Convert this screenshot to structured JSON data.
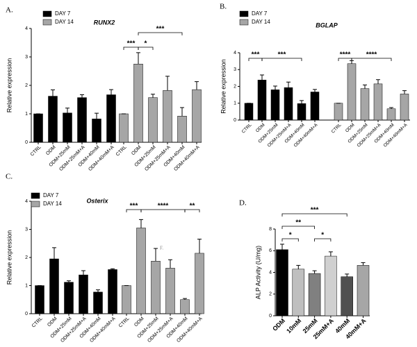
{
  "chart_data": [
    {
      "type": "bar",
      "panel": "A.",
      "title": "RUNX2",
      "y_label": "Relative expression",
      "categories": [
        "CTRL",
        "ODM",
        "ODM+25mM",
        "ODM+25mM+A",
        "ODM+40mM",
        "ODM+40mM+A"
      ],
      "series": [
        {
          "name": "DAY 7",
          "color": "#000000",
          "values": [
            1,
            1.62,
            1.03,
            1.57,
            0.82,
            1.67
          ],
          "errors": [
            0,
            0.22,
            0.17,
            0.1,
            0.2,
            0.18
          ]
        },
        {
          "name": "DAY 14",
          "color": "#a6a6a6",
          "values": [
            1,
            2.75,
            1.57,
            1.82,
            0.92,
            1.85
          ],
          "errors": [
            0,
            0.4,
            0.12,
            0.5,
            0.3,
            0.28
          ]
        }
      ],
      "ylim": [
        0,
        4
      ],
      "yticks": [
        0,
        1,
        2,
        3,
        4
      ],
      "annotations": [
        "***",
        "*",
        "***"
      ]
    },
    {
      "type": "bar",
      "panel": "B.",
      "title": "BGLAP",
      "y_label": "Relative expression",
      "categories": [
        "CTRL",
        "ODM",
        "ODM+25mM",
        "ODM+25mM+A",
        "ODM+40mM",
        "ODM+40mM+A"
      ],
      "series": [
        {
          "name": "DAY 7",
          "color": "#000000",
          "values": [
            1,
            2.38,
            1.8,
            1.93,
            0.98,
            1.67
          ],
          "errors": [
            0,
            0.3,
            0.22,
            0.33,
            0.18,
            0.15
          ]
        },
        {
          "name": "DAY 14",
          "color": "#a6a6a6",
          "values": [
            1,
            3.35,
            1.87,
            2.15,
            0.67,
            1.55
          ],
          "errors": [
            0,
            0.18,
            0.22,
            0.25,
            0.07,
            0.2
          ]
        }
      ],
      "ylim": [
        0,
        4
      ],
      "yticks": [
        0,
        1,
        2,
        3,
        4
      ],
      "annotations": [
        "***",
        "***",
        "****",
        "****"
      ]
    },
    {
      "type": "bar",
      "panel": "C.",
      "title": "Osterix",
      "y_label": "Relative expression",
      "note": "F.",
      "categories": [
        "CTRL",
        "ODM",
        "ODM+25mM",
        "ODM+25mM+A",
        "ODM+40mM",
        "ODM+40mM+A"
      ],
      "series": [
        {
          "name": "DAY 7",
          "color": "#000000",
          "values": [
            1,
            1.95,
            1.12,
            1.38,
            0.77,
            1.57
          ],
          "errors": [
            0,
            0.4,
            0.05,
            0.15,
            0.08,
            0.03
          ]
        },
        {
          "name": "DAY 14",
          "color": "#a6a6a6",
          "values": [
            1,
            3.05,
            1.87,
            1.62,
            0.5,
            2.15
          ],
          "errors": [
            0,
            0.3,
            0.45,
            0.3,
            0.04,
            0.5
          ]
        }
      ],
      "ylim": [
        0,
        4
      ],
      "yticks": [
        0,
        1,
        2,
        3,
        4
      ],
      "annotations": [
        "***",
        "****",
        "**"
      ]
    },
    {
      "type": "bar",
      "panel": "D.",
      "y_label": "ALP Activity (U/mg)",
      "categories": [
        "ODM",
        "10mM",
        "25mM",
        "25mM+A",
        "40mM",
        "40mM+A"
      ],
      "values": [
        6.1,
        4.3,
        3.9,
        5.5,
        3.6,
        4.65
      ],
      "errors": [
        0.5,
        0.35,
        0.25,
        0.4,
        0.25,
        0.25
      ],
      "colors": [
        "#000000",
        "#bfbfbf",
        "#808080",
        "#d0d0d0",
        "#505050",
        "#a6a6a6"
      ],
      "ylim": [
        0,
        8
      ],
      "yticks": [
        0,
        2,
        4,
        6,
        8
      ],
      "annotations": [
        "*",
        "*",
        "**",
        "***"
      ]
    }
  ]
}
